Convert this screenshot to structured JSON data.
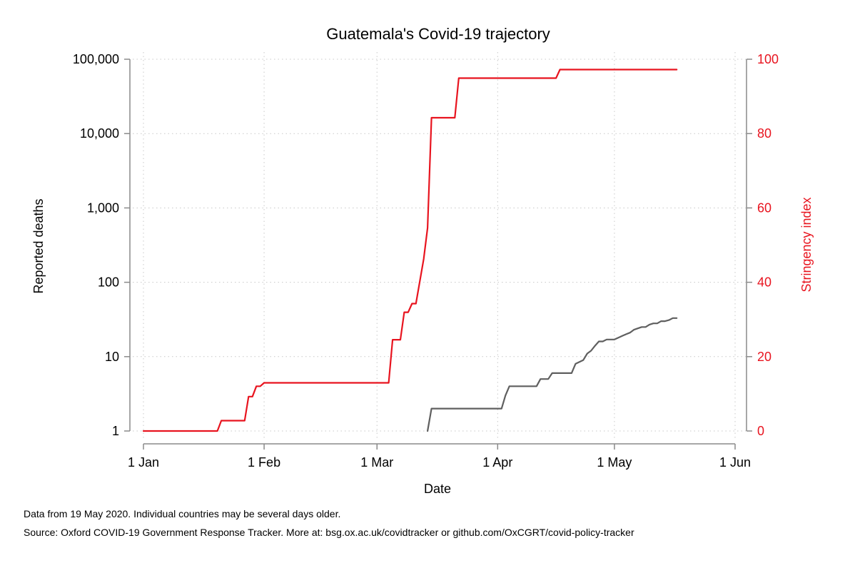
{
  "chart_data": {
    "type": "line",
    "title": "Guatemala's Covid-19 trajectory",
    "xlabel": "Date",
    "ylabel_left": "Reported deaths",
    "ylabel_right": "Stringency index",
    "x_tick_labels": [
      "1 Jan",
      "1 Feb",
      "1 Mar",
      "1 Apr",
      "1 May",
      "1 Jun"
    ],
    "x_tick_days": [
      0,
      31,
      60,
      91,
      121,
      152
    ],
    "xlim_days": [
      0,
      152
    ],
    "left_axis": {
      "scale": "log",
      "ylim": [
        1,
        100000
      ],
      "tick_values": [
        1,
        10,
        100,
        1000,
        10000,
        100000
      ],
      "tick_labels": [
        "1",
        "10",
        "100",
        "1,000",
        "10,000",
        "100,000"
      ]
    },
    "right_axis": {
      "scale": "linear",
      "ylim": [
        0,
        100
      ],
      "tick_values": [
        0,
        20,
        40,
        60,
        80,
        100
      ],
      "tick_labels": [
        "0",
        "20",
        "40",
        "60",
        "80",
        "100"
      ]
    },
    "grid": true,
    "series": [
      {
        "name": "Stringency index",
        "axis": "right",
        "color": "#e8141f",
        "step": true,
        "day": [
          0,
          19,
          20,
          26,
          27,
          28,
          29,
          30,
          31,
          63,
          64,
          66,
          67,
          68,
          69,
          70,
          72,
          73,
          74,
          75,
          76,
          80,
          81,
          106,
          107,
          137
        ],
        "value": [
          0,
          0,
          2.78,
          2.78,
          9.26,
          9.26,
          12.04,
          12.04,
          12.96,
          12.96,
          24.54,
          24.54,
          31.94,
          31.94,
          34.26,
          34.26,
          46.3,
          54.63,
          84.26,
          84.26,
          84.26,
          84.26,
          94.91,
          94.91,
          97.22,
          97.22
        ]
      },
      {
        "name": "Reported deaths",
        "axis": "left",
        "color": "#5f5f5f",
        "step": true,
        "day": [
          73,
          74,
          92,
          93,
          94,
          101,
          102,
          104,
          105,
          110,
          111,
          113,
          114,
          115,
          116,
          117,
          118,
          119,
          120,
          121,
          122,
          123,
          124,
          125,
          126,
          127,
          128,
          129,
          130,
          131,
          132,
          133,
          134,
          135,
          136,
          137
        ],
        "value": [
          1,
          2,
          2,
          3,
          4,
          4,
          5,
          5,
          6,
          6,
          8,
          9,
          11,
          12,
          14,
          16,
          16,
          17,
          17,
          17,
          18,
          19,
          20,
          21,
          23,
          24,
          25,
          25,
          27,
          28,
          28,
          30,
          30,
          31,
          33,
          33
        ]
      }
    ]
  },
  "footnotes": {
    "line1": "Data from 19 May 2020. Individual countries may be several days older.",
    "line2": "Source: Oxford COVID-19 Government Response Tracker. More at: bsg.ox.ac.uk/covidtracker or github.com/OxCGRT/covid-policy-tracker"
  },
  "colors": {
    "stringency": "#e8141f",
    "deaths": "#5f5f5f",
    "axis": "#8a8a8a",
    "grid": "#c8c8c8"
  }
}
